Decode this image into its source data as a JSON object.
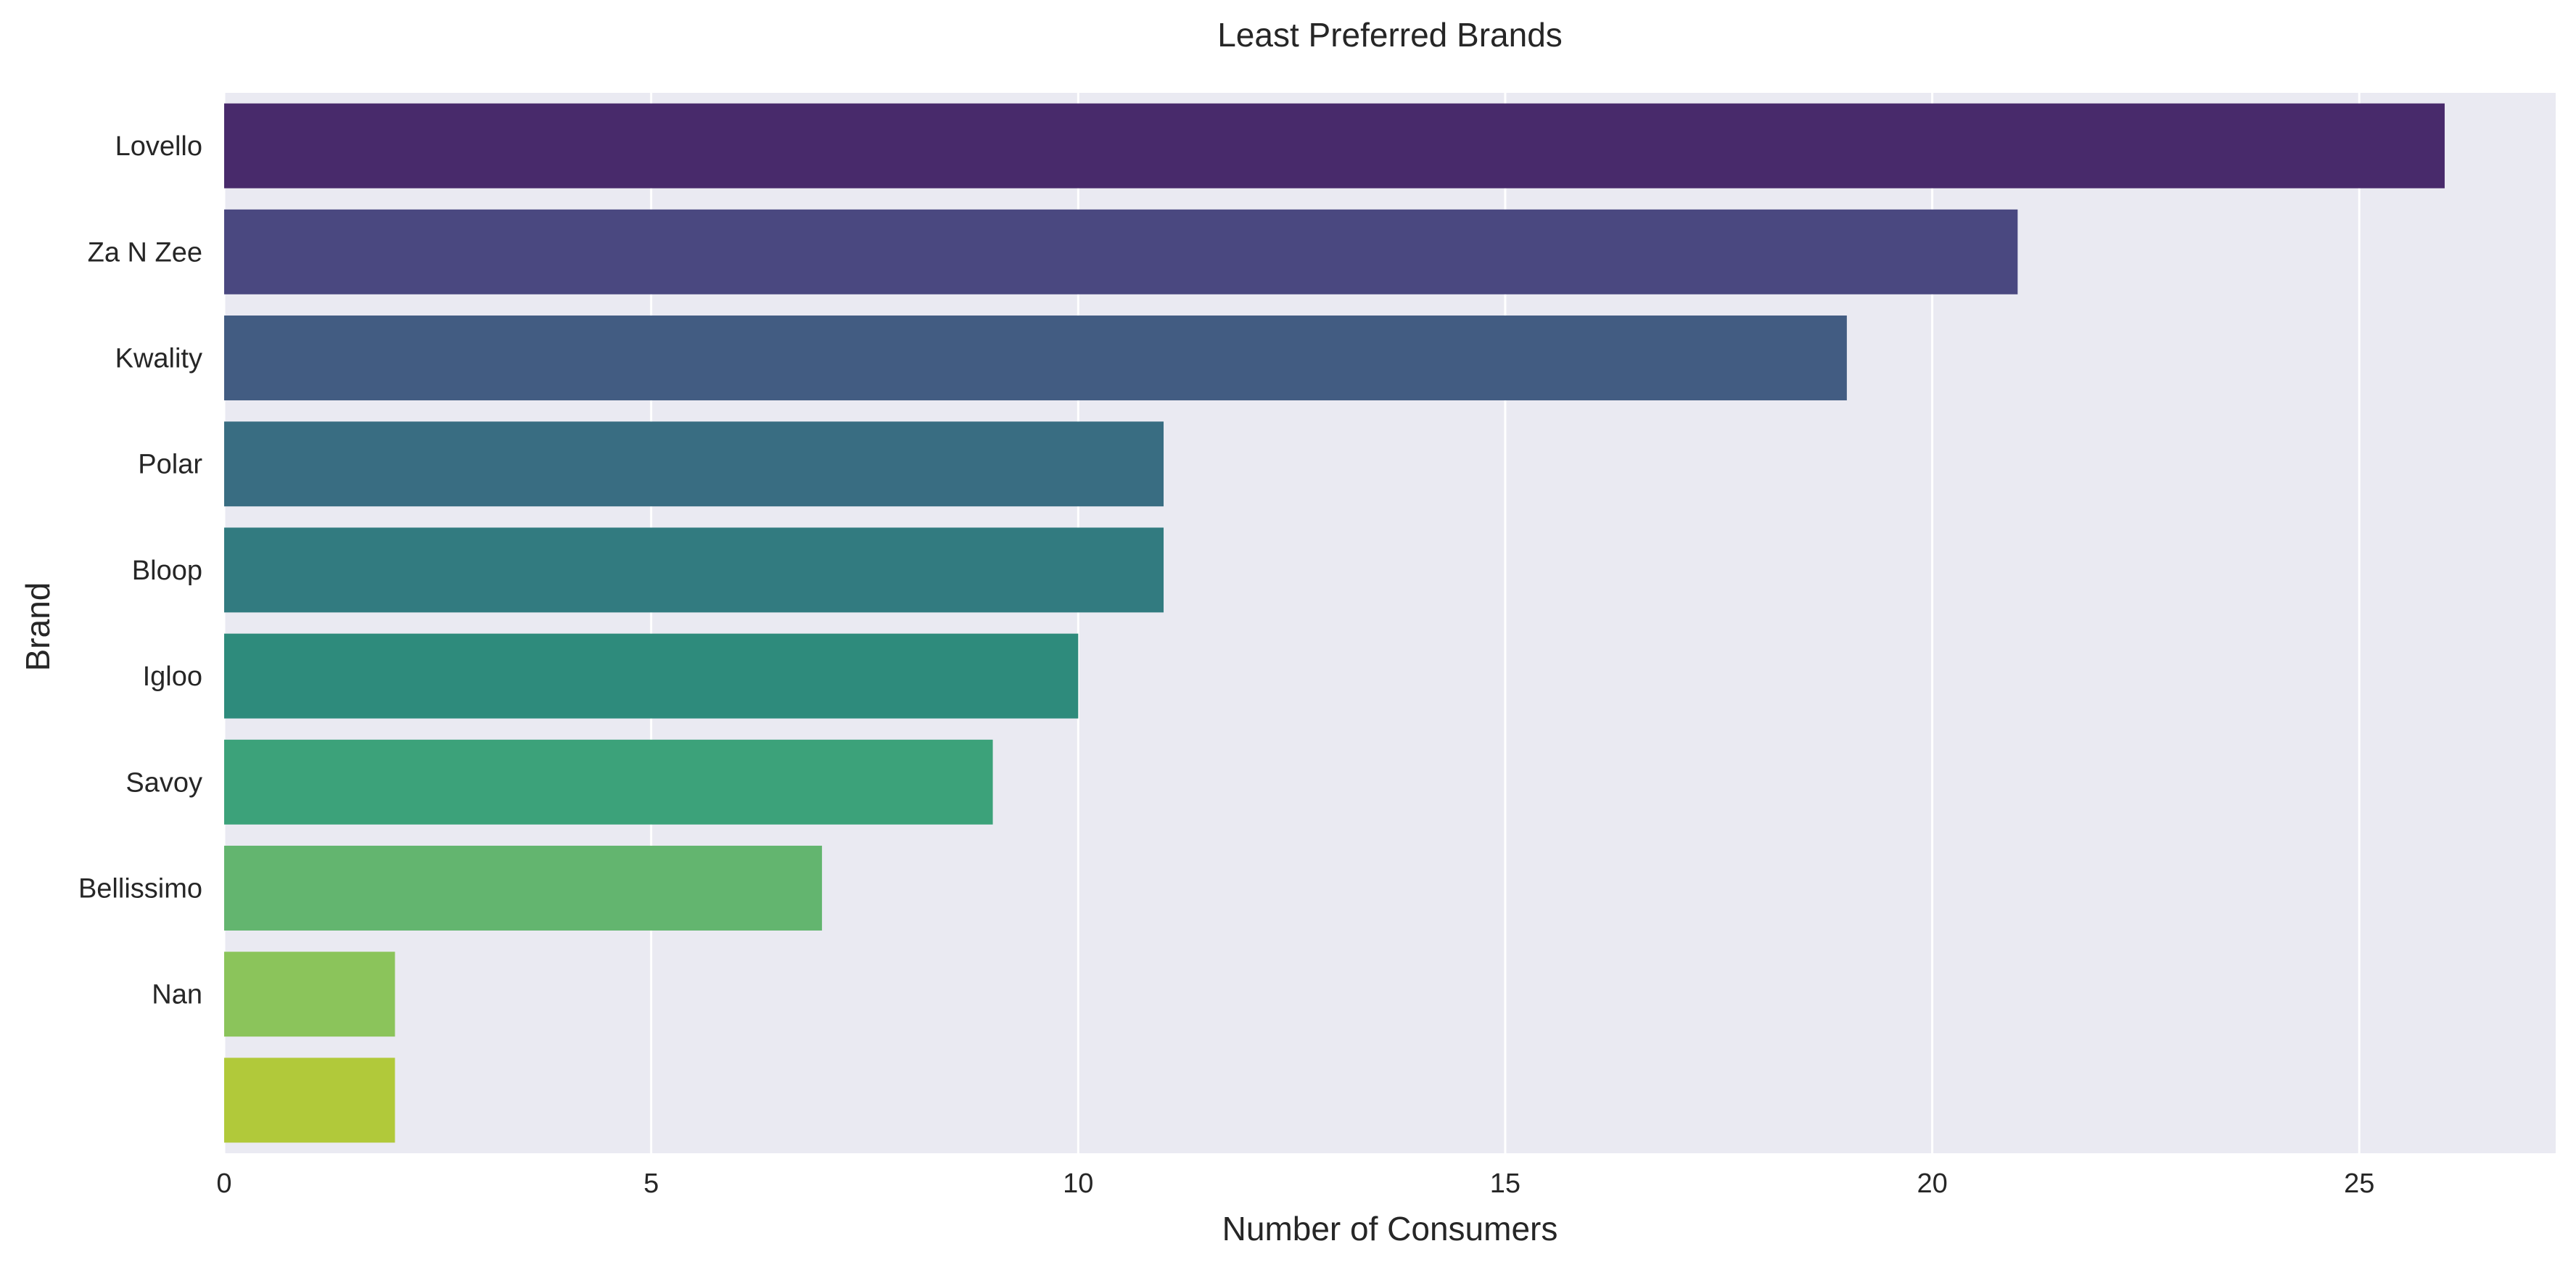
{
  "chart_data": {
    "type": "bar",
    "orientation": "horizontal",
    "title": "Least Preferred Brands",
    "xlabel": "Number of Consumers",
    "ylabel": "Brand",
    "categories": [
      "Lovello",
      "Za N Zee",
      "Kwality",
      "Polar",
      "Bloop",
      "Igloo",
      "Savoy",
      "Bellissimo",
      "Nan",
      ""
    ],
    "values": [
      26,
      21,
      19,
      11,
      11,
      10,
      9,
      7,
      2,
      2
    ],
    "colors": [
      "#482a6b",
      "#4a4880",
      "#425c82",
      "#396d82",
      "#327b80",
      "#2e8b7c",
      "#3ca27a",
      "#63b56f",
      "#8bc45b",
      "#b1c93a"
    ],
    "xlim": [
      0,
      27.3
    ],
    "xticks": [
      0,
      5,
      10,
      15,
      20,
      25
    ],
    "grid": true,
    "legend": "none",
    "plot_background": "#eaeaf2",
    "grid_color": "#ffffff"
  }
}
